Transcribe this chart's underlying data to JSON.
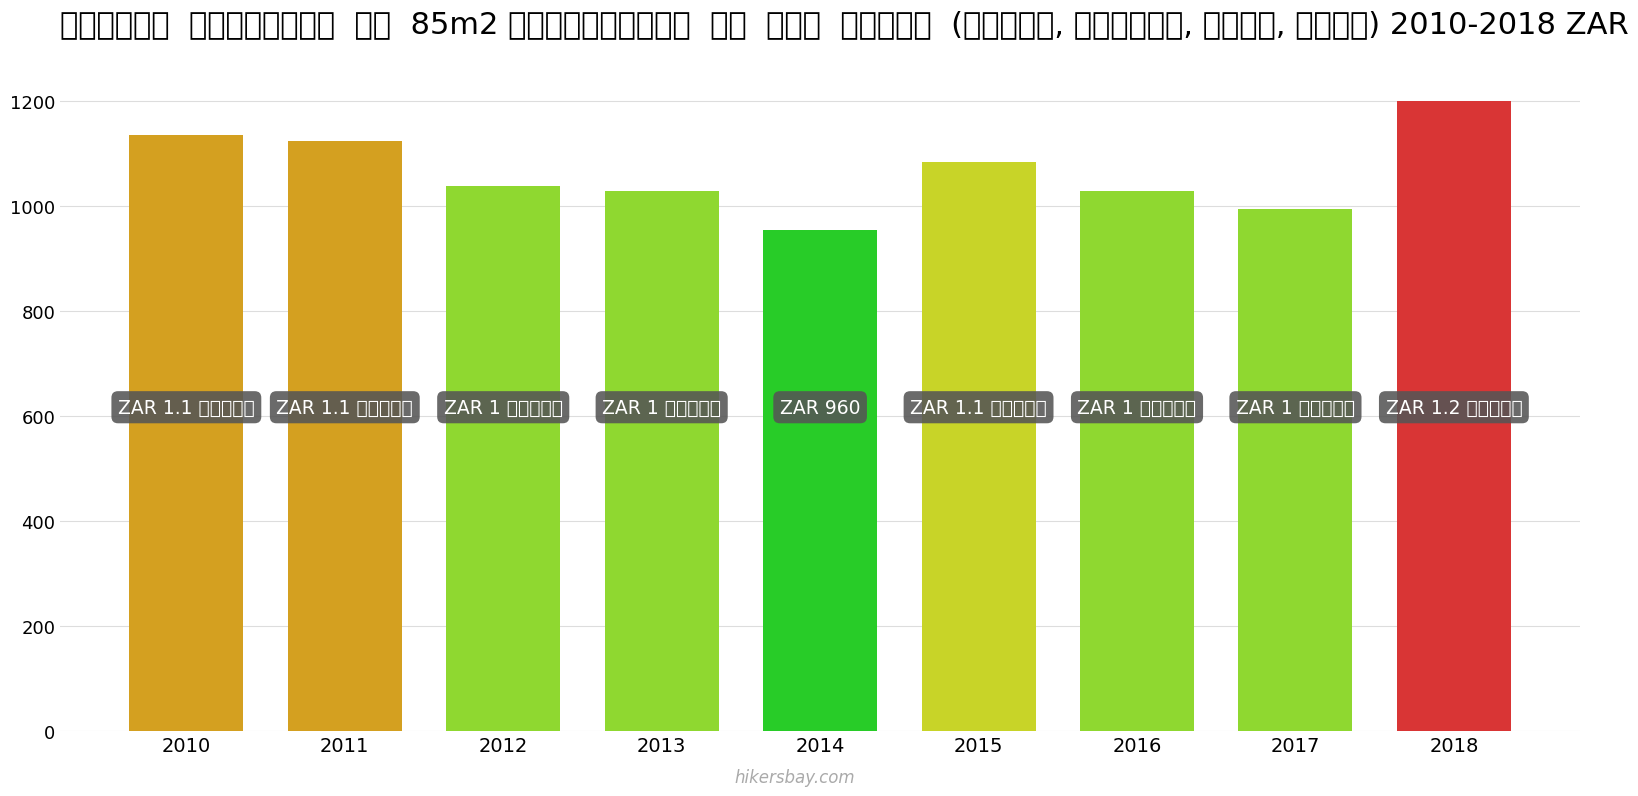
{
  "years": [
    2010,
    2011,
    2012,
    2013,
    2014,
    2015,
    2016,
    2017,
    2018
  ],
  "values": [
    1135,
    1125,
    1038,
    1028,
    955,
    1085,
    1028,
    995,
    1200
  ],
  "bar_colors": [
    "#D4A020",
    "#D4A020",
    "#8FD830",
    "#8FD830",
    "#28CC28",
    "#C8D428",
    "#8FD830",
    "#8FD830",
    "#D93535"
  ],
  "label_texts": [
    "ZAR 1.1 हज़ार",
    "ZAR 1.1 हज़ार",
    "ZAR 1 हज़ार",
    "ZAR 1 हज़ार",
    "ZAR 960",
    "ZAR 1.1 हज़ार",
    "ZAR 1 हज़ार",
    "ZAR 1 हज़ार",
    "ZAR 1.2 हज़ार"
  ],
  "title": "दक्षिण  अफ़्रीका  एक  85m2 अपार्टमेंट  के  लिए  शुल्क  (बिजली, हीटिंग, पानी, कचरा) 2010-2018 ZAR",
  "ylabel": "",
  "ylim": [
    0,
    1300
  ],
  "yticks": [
    0,
    200,
    400,
    600,
    800,
    1000,
    1200
  ],
  "watermark": "hikersbay.com",
  "label_box_color": "#555555",
  "label_text_color": "#ffffff",
  "title_fontsize": 22,
  "bar_width": 0.72,
  "grid_color": "#dddddd",
  "bg_color": "#ffffff"
}
